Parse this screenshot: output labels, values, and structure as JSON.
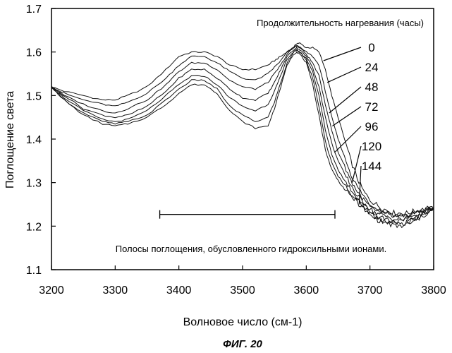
{
  "chart_data": {
    "type": "line",
    "xlabel": "Волновое число (см-1)",
    "ylabel": "Поглощение света",
    "xlim": [
      3200,
      3800
    ],
    "ylim": [
      1.1,
      1.7
    ],
    "xticks": [
      3200,
      3300,
      3400,
      3500,
      3600,
      3700,
      3800
    ],
    "yticks": [
      1.1,
      1.2,
      1.3,
      1.4,
      1.5,
      1.6,
      1.7
    ],
    "xtick_labels": [
      "3200",
      "3300",
      "3400",
      "3500",
      "3600",
      "3700",
      "3800"
    ],
    "ytick_labels": [
      "1.1",
      "1.2",
      "1.3",
      "1.4",
      "1.5",
      "1.6",
      "1.7"
    ],
    "grid": false,
    "legend_title": "Продолжительность нагревания (часы)",
    "caption": "ФИГ. 20",
    "annotation": {
      "text": "Полосы поглощения, обусловленного гидроксильными ионами.",
      "x_range": [
        3370,
        3645
      ],
      "y": 1.227
    },
    "x": [
      3200,
      3220,
      3250,
      3280,
      3300,
      3320,
      3350,
      3380,
      3400,
      3420,
      3440,
      3460,
      3480,
      3500,
      3520,
      3540,
      3550,
      3560,
      3570,
      3580,
      3585,
      3590,
      3600,
      3610,
      3620,
      3630,
      3640,
      3650,
      3660,
      3670,
      3680,
      3690,
      3700,
      3710,
      3720,
      3730,
      3740,
      3750,
      3760,
      3770,
      3780,
      3790,
      3800
    ],
    "series": [
      {
        "name": "0",
        "values": [
          1.52,
          1.51,
          1.5,
          1.49,
          1.49,
          1.5,
          1.52,
          1.56,
          1.59,
          1.6,
          1.6,
          1.59,
          1.57,
          1.56,
          1.56,
          1.57,
          1.58,
          1.59,
          1.6,
          1.61,
          1.62,
          1.62,
          1.61,
          1.61,
          1.6,
          1.56,
          1.5,
          1.45,
          1.4,
          1.35,
          1.31,
          1.28,
          1.26,
          1.25,
          1.24,
          1.235,
          1.23,
          1.23,
          1.23,
          1.235,
          1.235,
          1.24,
          1.24
        ]
      },
      {
        "name": "24",
        "values": [
          1.52,
          1.505,
          1.49,
          1.48,
          1.475,
          1.485,
          1.505,
          1.54,
          1.57,
          1.59,
          1.59,
          1.575,
          1.555,
          1.54,
          1.535,
          1.55,
          1.565,
          1.58,
          1.6,
          1.61,
          1.615,
          1.61,
          1.6,
          1.59,
          1.57,
          1.51,
          1.45,
          1.4,
          1.36,
          1.32,
          1.29,
          1.27,
          1.25,
          1.24,
          1.235,
          1.23,
          1.225,
          1.225,
          1.225,
          1.23,
          1.235,
          1.24,
          1.24
        ]
      },
      {
        "name": "48",
        "values": [
          1.52,
          1.5,
          1.48,
          1.465,
          1.46,
          1.47,
          1.49,
          1.525,
          1.555,
          1.575,
          1.575,
          1.56,
          1.535,
          1.52,
          1.515,
          1.53,
          1.55,
          1.57,
          1.595,
          1.61,
          1.615,
          1.61,
          1.595,
          1.575,
          1.545,
          1.48,
          1.42,
          1.37,
          1.34,
          1.305,
          1.28,
          1.26,
          1.245,
          1.235,
          1.23,
          1.225,
          1.22,
          1.22,
          1.225,
          1.23,
          1.235,
          1.24,
          1.24
        ]
      },
      {
        "name": "72",
        "values": [
          1.52,
          1.5,
          1.47,
          1.455,
          1.45,
          1.455,
          1.475,
          1.51,
          1.54,
          1.56,
          1.56,
          1.54,
          1.515,
          1.495,
          1.49,
          1.505,
          1.53,
          1.56,
          1.59,
          1.605,
          1.61,
          1.605,
          1.59,
          1.565,
          1.52,
          1.45,
          1.39,
          1.35,
          1.32,
          1.295,
          1.27,
          1.255,
          1.24,
          1.23,
          1.225,
          1.22,
          1.215,
          1.215,
          1.22,
          1.225,
          1.23,
          1.235,
          1.24
        ]
      },
      {
        "name": "96",
        "values": [
          1.52,
          1.495,
          1.465,
          1.445,
          1.44,
          1.445,
          1.465,
          1.5,
          1.525,
          1.545,
          1.545,
          1.525,
          1.495,
          1.475,
          1.465,
          1.48,
          1.51,
          1.545,
          1.585,
          1.6,
          1.605,
          1.6,
          1.585,
          1.555,
          1.5,
          1.42,
          1.365,
          1.33,
          1.305,
          1.285,
          1.265,
          1.25,
          1.235,
          1.225,
          1.22,
          1.215,
          1.21,
          1.21,
          1.215,
          1.22,
          1.225,
          1.235,
          1.24
        ]
      },
      {
        "name": "120",
        "values": [
          1.52,
          1.49,
          1.46,
          1.44,
          1.435,
          1.44,
          1.455,
          1.49,
          1.515,
          1.535,
          1.535,
          1.515,
          1.475,
          1.455,
          1.44,
          1.45,
          1.485,
          1.53,
          1.575,
          1.6,
          1.605,
          1.6,
          1.58,
          1.54,
          1.475,
          1.395,
          1.345,
          1.315,
          1.295,
          1.275,
          1.26,
          1.245,
          1.23,
          1.22,
          1.215,
          1.21,
          1.205,
          1.205,
          1.21,
          1.215,
          1.225,
          1.235,
          1.24
        ]
      },
      {
        "name": "144",
        "values": [
          1.52,
          1.49,
          1.455,
          1.435,
          1.43,
          1.435,
          1.45,
          1.48,
          1.505,
          1.525,
          1.525,
          1.505,
          1.465,
          1.44,
          1.425,
          1.43,
          1.47,
          1.52,
          1.57,
          1.595,
          1.6,
          1.595,
          1.575,
          1.525,
          1.455,
          1.375,
          1.33,
          1.305,
          1.285,
          1.27,
          1.255,
          1.24,
          1.225,
          1.215,
          1.21,
          1.205,
          1.2,
          1.2,
          1.205,
          1.21,
          1.22,
          1.23,
          1.24
        ]
      }
    ],
    "series_label_points": [
      {
        "name": "0",
        "x": 3627,
        "y": 1.58
      },
      {
        "name": "24",
        "x": 3633,
        "y": 1.53
      },
      {
        "name": "48",
        "x": 3636,
        "y": 1.46
      },
      {
        "name": "72",
        "x": 3641,
        "y": 1.43
      },
      {
        "name": "96",
        "x": 3645,
        "y": 1.37
      },
      {
        "name": "120",
        "x": 3672,
        "y": 1.3
      },
      {
        "name": "144",
        "x": 3683,
        "y": 1.25
      }
    ]
  }
}
